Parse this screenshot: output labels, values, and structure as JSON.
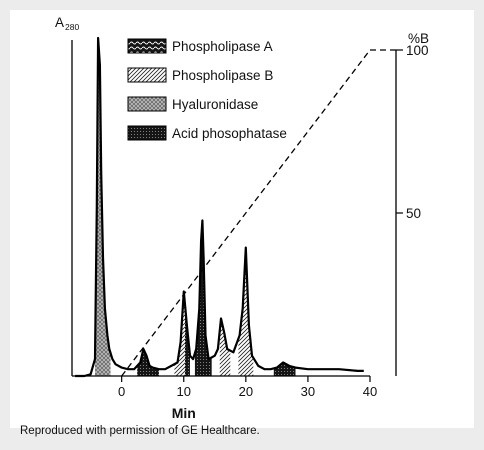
{
  "chart_data": {
    "type": "line",
    "title": "",
    "y_left_label": {
      "main": "A",
      "sub": "280"
    },
    "y_right_label": "%B",
    "xlabel": "Min",
    "x_ticks": [
      0,
      10,
      20,
      30,
      40
    ],
    "x_range": [
      -8,
      40
    ],
    "right_ticks": [
      50,
      100
    ],
    "right_range": [
      0,
      100
    ],
    "legend": [
      {
        "label": "Phospholipase A",
        "pattern": "wave"
      },
      {
        "label": "Phospholipase B",
        "pattern": "diagonal"
      },
      {
        "label": "Hyaluronidase",
        "pattern": "crosshatch"
      },
      {
        "label": "Acid phosophatase",
        "pattern": "dots"
      }
    ],
    "absorbance_trace": {
      "x": [
        -7.5,
        -6,
        -5,
        -4.3,
        -4,
        -3.8,
        -3.5,
        -3.3,
        -3,
        -2.7,
        -2.3,
        -2,
        -1.5,
        -1,
        0,
        1,
        2,
        3,
        3.5,
        4,
        4.5,
        5,
        6,
        7,
        8,
        9,
        9.5,
        10,
        10.5,
        11,
        11.5,
        12,
        12.5,
        12.8,
        13,
        13.2,
        13.5,
        14,
        15,
        15.5,
        16,
        16.5,
        17,
        18,
        19,
        19.5,
        20,
        20.5,
        21,
        22,
        23,
        24,
        25,
        26,
        27,
        28,
        30,
        32,
        35,
        38,
        39
      ],
      "y": [
        0.0,
        0.0,
        0.5,
        5,
        50,
        100,
        92,
        60,
        35,
        20,
        12,
        8,
        5,
        3.5,
        2.5,
        2,
        2,
        4,
        8,
        6,
        3,
        2.5,
        2,
        2,
        3,
        4,
        10,
        25,
        15,
        6,
        5,
        8,
        20,
        40,
        46,
        35,
        12,
        5,
        6,
        8,
        17,
        13,
        8,
        7,
        12,
        20,
        38,
        15,
        6,
        3,
        2,
        2,
        2.5,
        4,
        3,
        2.5,
        2,
        2,
        2,
        1.5,
        1.5
      ]
    },
    "gradient_B": {
      "x": [
        0,
        40
      ],
      "y": [
        0,
        100
      ]
    },
    "shaded_regions": [
      {
        "component": "Hyaluronidase",
        "x_range": [
          -4.3,
          -1.8
        ]
      },
      {
        "component": "Acid phosophatase",
        "x_range": [
          2.5,
          6
        ]
      },
      {
        "component": "Phospholipase B",
        "x_range": [
          8.5,
          10.2
        ]
      },
      {
        "component": "Acid phosophatase",
        "x_range": [
          10.2,
          11
        ]
      },
      {
        "component": "Acid phosophatase",
        "x_range": [
          11.8,
          14.5
        ]
      },
      {
        "component": "Phospholipase B",
        "x_range": [
          15.8,
          17.5
        ]
      },
      {
        "component": "Phospholipase B",
        "x_range": [
          18.8,
          21.2
        ]
      },
      {
        "component": "Acid phosophatase",
        "x_range": [
          24.5,
          28
        ]
      }
    ],
    "grid": false,
    "legend_position": "top-center"
  },
  "caption": "Reproduced with permission of GE Healthcare."
}
